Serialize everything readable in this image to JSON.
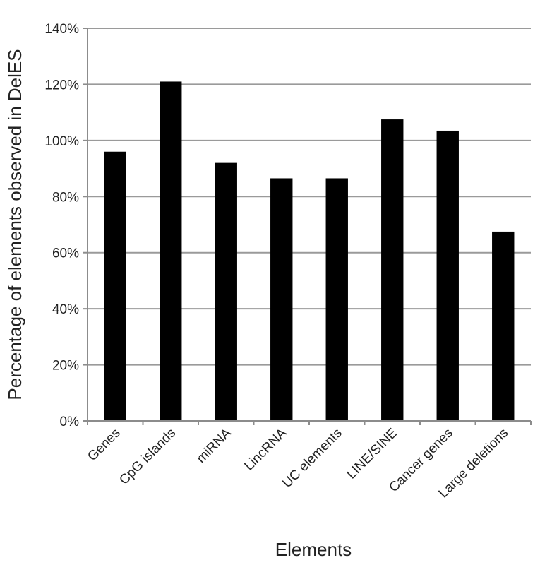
{
  "chart_data": {
    "type": "bar",
    "title": "",
    "xlabel": "Elements",
    "ylabel": "Percentage  of elements observed in DelES",
    "categories": [
      "Genes",
      "CpG islands",
      "miRNA",
      "LincRNA",
      "UC elements",
      "LINE/SINE",
      "Cancer genes",
      "Large deletions"
    ],
    "values": [
      96,
      121,
      92,
      86.5,
      86.5,
      107.5,
      103.5,
      67.5
    ],
    "value_format": "percent",
    "ylim": [
      0,
      140
    ],
    "yticks": [
      0,
      20,
      40,
      60,
      80,
      100,
      120,
      140
    ],
    "ytick_labels": [
      "0%",
      "20%",
      "40%",
      "60%",
      "80%",
      "100%",
      "120%",
      "140%"
    ],
    "grid": true,
    "legend": "none",
    "colors": {
      "bar": "#000000",
      "grid": "#9a9a9a",
      "axis": "#8c8c8c",
      "text": "#222222"
    }
  }
}
